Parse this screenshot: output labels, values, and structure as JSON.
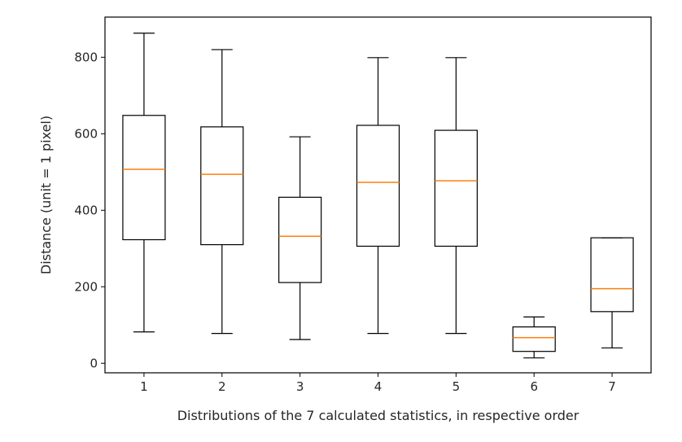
{
  "chart_data": {
    "type": "box",
    "title": "",
    "xlabel": "Distributions of the 7 calculated statistics, in respective order",
    "ylabel": "Distance (unit = 1 pixel)",
    "ylim": [
      -25,
      905
    ],
    "yticks": [
      0,
      200,
      400,
      600,
      800
    ],
    "grid": false,
    "categories": [
      "1",
      "2",
      "3",
      "4",
      "5",
      "6",
      "7"
    ],
    "boxes": [
      {
        "label": "1",
        "whislo": 82,
        "q1": 323,
        "med": 507,
        "q3": 648,
        "whishi": 863
      },
      {
        "label": "2",
        "whislo": 78,
        "q1": 310,
        "med": 494,
        "q3": 618,
        "whishi": 820
      },
      {
        "label": "3",
        "whislo": 62,
        "q1": 211,
        "med": 332,
        "q3": 434,
        "whishi": 592
      },
      {
        "label": "4",
        "whislo": 78,
        "q1": 306,
        "med": 473,
        "q3": 622,
        "whishi": 799
      },
      {
        "label": "5",
        "whislo": 78,
        "q1": 306,
        "med": 477,
        "q3": 609,
        "whishi": 799
      },
      {
        "label": "6",
        "whislo": 14,
        "q1": 31,
        "med": 67,
        "q3": 95,
        "whishi": 121
      },
      {
        "label": "7",
        "whislo": 40,
        "q1": 135,
        "med": 195,
        "q3": 328,
        "whishi": 328
      }
    ],
    "colors": {
      "box": "#000000",
      "median": "#ff7f0e",
      "axes": "#000000"
    }
  }
}
